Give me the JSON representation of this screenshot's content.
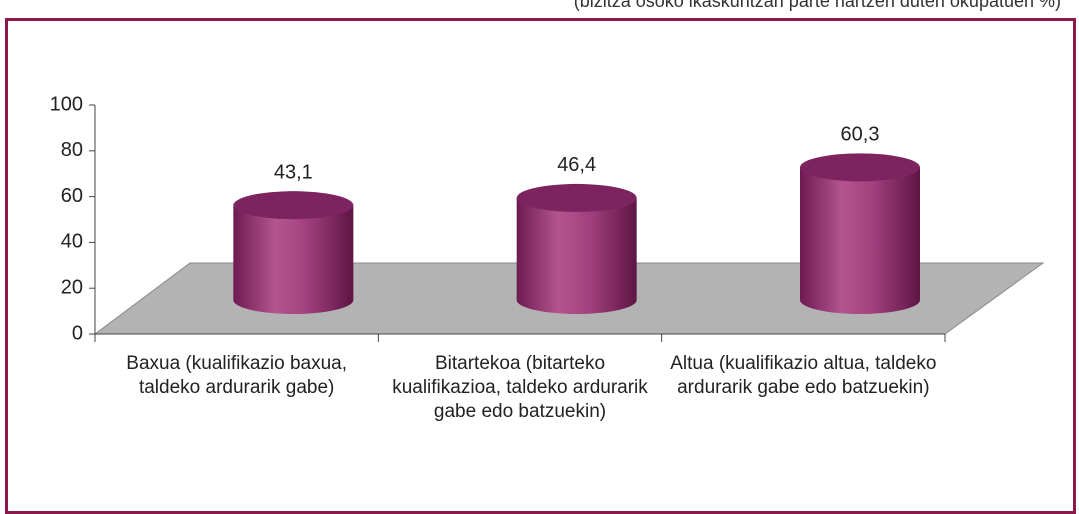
{
  "chart_data": {
    "type": "cylinder",
    "subtitle": "(bizitza osoko ikaskuntzan parte hartzen duten okupatuen %)",
    "categories": [
      "Baxua (kualifikazio baxua, taldeko ardurarik gabe)",
      "Bitartekoa (bitarteko kualifikazioa, taldeko ardurarik gabe edo batzuekin)",
      "Altua (kualifikazio altua, taldeko ardurarik gabe edo batzuekin)"
    ],
    "values": [
      43.1,
      46.4,
      60.3
    ],
    "value_labels": [
      "43,1",
      "46,4",
      "60,3"
    ],
    "color": "#a3417f",
    "ylim": [
      0,
      100
    ],
    "yticks": [
      0,
      20,
      40,
      60,
      80,
      100
    ]
  }
}
